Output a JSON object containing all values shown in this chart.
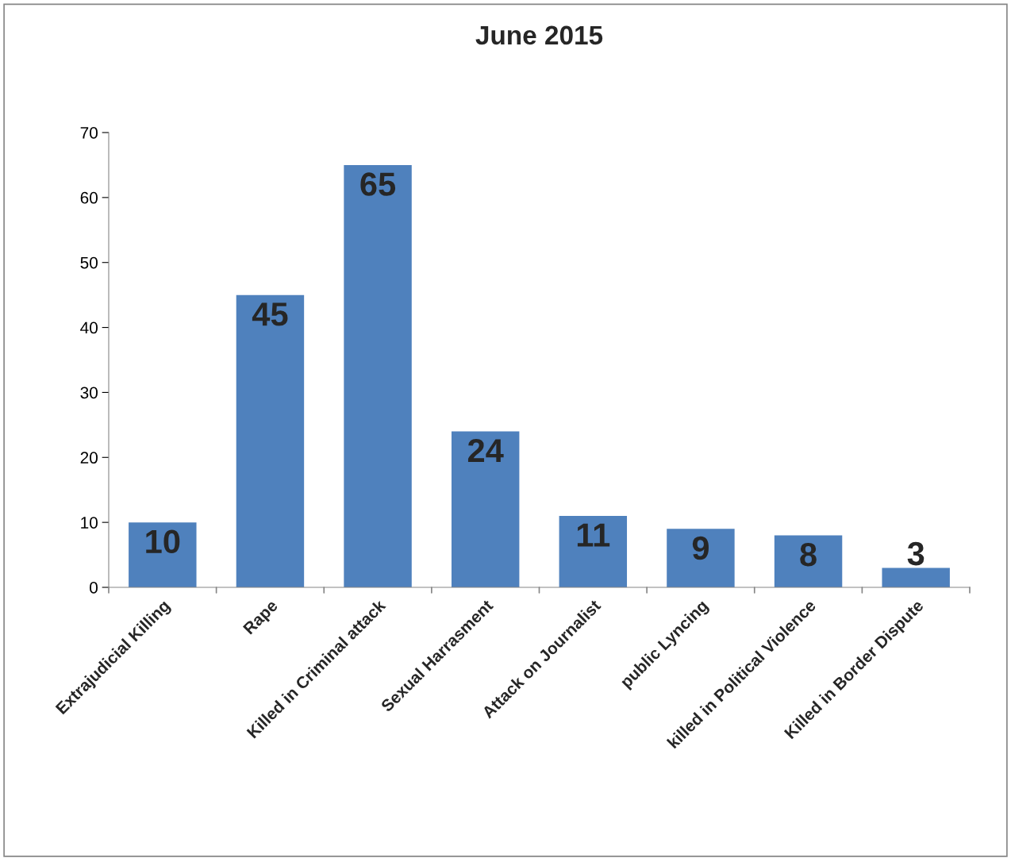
{
  "chart_data": {
    "type": "bar",
    "title": "June 2015",
    "categories": [
      "Extrajudicial Killing",
      "Rape",
      "Killed in Criminal attack",
      "Sexual Harrasment",
      "Attack on Journalist",
      "public Lyncing",
      "killed in Political Violence",
      "Killed in Border Dispute"
    ],
    "values": [
      10,
      45,
      65,
      24,
      11,
      9,
      8,
      3
    ],
    "color": "#4f81bd",
    "ylim": [
      0,
      70
    ],
    "yticks": [
      0,
      10,
      20,
      30,
      40,
      50,
      60,
      70
    ],
    "grid": false,
    "data_labels": true
  }
}
